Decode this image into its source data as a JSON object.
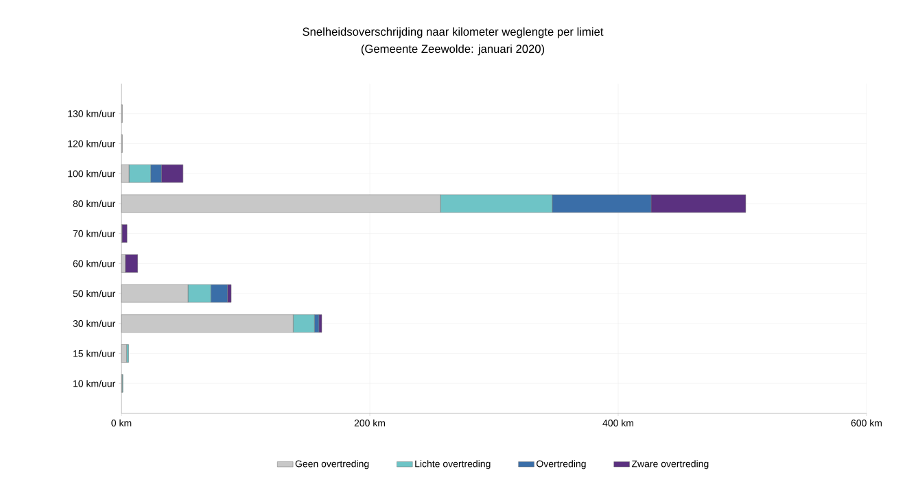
{
  "chart_data": {
    "type": "bar",
    "orientation": "horizontal",
    "stacked": true,
    "title": "Snelheidsoverschrijding naar kilometer weglengte per limiet",
    "subtitle": "(Gemeente Zeewolde: januari 2020)",
    "categories": [
      "130 km/uur",
      "120 km/uur",
      "100 km/uur",
      "80 km/uur",
      "70 km/uur",
      "60 km/uur",
      "50 km/uur",
      "30 km/uur",
      "15 km/uur",
      "10 km/uur"
    ],
    "series": [
      {
        "name": "Geen overtreding",
        "color": "#c8c8c8",
        "values": [
          0.8,
          0.8,
          6.1,
          256.9,
          0.5,
          3.1,
          53.6,
          138.3,
          4.2,
          0.6
        ]
      },
      {
        "name": "Lichte overtreding",
        "color": "#6ec4c6",
        "values": [
          0,
          0,
          17.5,
          90,
          0,
          0,
          18.4,
          17.1,
          1.6,
          0.6
        ]
      },
      {
        "name": "Overtreding",
        "color": "#3a6ea8",
        "values": [
          0,
          0,
          8.6,
          79.6,
          0,
          0,
          13.4,
          3.6,
          0,
          0
        ]
      },
      {
        "name": "Zware overtreding",
        "color": "#5b3180",
        "values": [
          0,
          0,
          17.4,
          76.2,
          4,
          10,
          3,
          2.3,
          0,
          0
        ]
      }
    ],
    "xlim": [
      0,
      600
    ],
    "xticks": [
      {
        "value": 0,
        "label": "0 km"
      },
      {
        "value": 200,
        "label": "200 km"
      },
      {
        "value": 400,
        "label": "400 km"
      },
      {
        "value": 600,
        "label": "600 km"
      }
    ],
    "grid": true,
    "legend": "bottom"
  }
}
